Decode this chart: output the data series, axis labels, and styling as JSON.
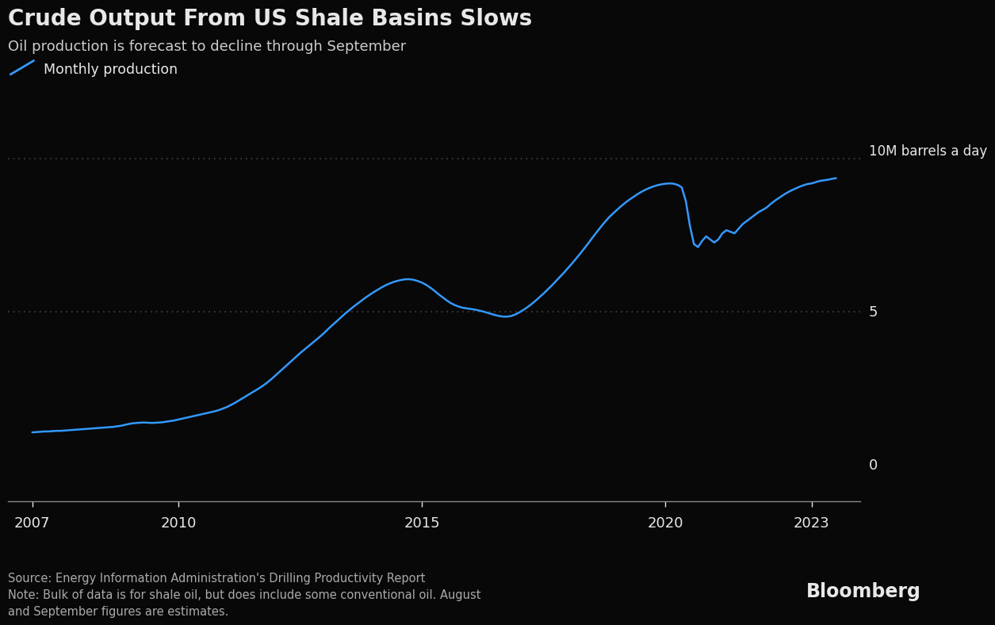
{
  "title": "Crude Output From US Shale Basins Slows",
  "subtitle": "Oil production is forecast to decline through September",
  "legend_label": "Monthly production",
  "ytick_right_label": "10M barrels a day",
  "x_ticks": [
    2007,
    2010,
    2015,
    2020,
    2023
  ],
  "ylim": [
    -1.2,
    12.0
  ],
  "xlim": [
    2006.5,
    2024.0
  ],
  "background_color": "#080808",
  "line_color": "#3399ff",
  "text_color": "#e8e8e8",
  "subtitle_color": "#cccccc",
  "source_color": "#aaaaaa",
  "source_text": "Source: Energy Information Administration's Drilling Productivity Report\nNote: Bulk of data is for shale oil, but does include some conventional oil. August\nand September figures are estimates.",
  "bloomberg_text": "Bloomberg",
  "dotted_line_color": "#444444",
  "years": [
    2007.0,
    2007.083,
    2007.167,
    2007.25,
    2007.333,
    2007.417,
    2007.5,
    2007.583,
    2007.667,
    2007.75,
    2007.833,
    2007.917,
    2008.0,
    2008.083,
    2008.167,
    2008.25,
    2008.333,
    2008.417,
    2008.5,
    2008.583,
    2008.667,
    2008.75,
    2008.833,
    2008.917,
    2009.0,
    2009.083,
    2009.167,
    2009.25,
    2009.333,
    2009.417,
    2009.5,
    2009.583,
    2009.667,
    2009.75,
    2009.833,
    2009.917,
    2010.0,
    2010.083,
    2010.167,
    2010.25,
    2010.333,
    2010.417,
    2010.5,
    2010.583,
    2010.667,
    2010.75,
    2010.833,
    2010.917,
    2011.0,
    2011.083,
    2011.167,
    2011.25,
    2011.333,
    2011.417,
    2011.5,
    2011.583,
    2011.667,
    2011.75,
    2011.833,
    2011.917,
    2012.0,
    2012.083,
    2012.167,
    2012.25,
    2012.333,
    2012.417,
    2012.5,
    2012.583,
    2012.667,
    2012.75,
    2012.833,
    2012.917,
    2013.0,
    2013.083,
    2013.167,
    2013.25,
    2013.333,
    2013.417,
    2013.5,
    2013.583,
    2013.667,
    2013.75,
    2013.833,
    2013.917,
    2014.0,
    2014.083,
    2014.167,
    2014.25,
    2014.333,
    2014.417,
    2014.5,
    2014.583,
    2014.667,
    2014.75,
    2014.833,
    2014.917,
    2015.0,
    2015.083,
    2015.167,
    2015.25,
    2015.333,
    2015.417,
    2015.5,
    2015.583,
    2015.667,
    2015.75,
    2015.833,
    2015.917,
    2016.0,
    2016.083,
    2016.167,
    2016.25,
    2016.333,
    2016.417,
    2016.5,
    2016.583,
    2016.667,
    2016.75,
    2016.833,
    2016.917,
    2017.0,
    2017.083,
    2017.167,
    2017.25,
    2017.333,
    2017.417,
    2017.5,
    2017.583,
    2017.667,
    2017.75,
    2017.833,
    2017.917,
    2018.0,
    2018.083,
    2018.167,
    2018.25,
    2018.333,
    2018.417,
    2018.5,
    2018.583,
    2018.667,
    2018.75,
    2018.833,
    2018.917,
    2019.0,
    2019.083,
    2019.167,
    2019.25,
    2019.333,
    2019.417,
    2019.5,
    2019.583,
    2019.667,
    2019.75,
    2019.833,
    2019.917,
    2020.0,
    2020.083,
    2020.167,
    2020.25,
    2020.333,
    2020.417,
    2020.5,
    2020.583,
    2020.667,
    2020.75,
    2020.833,
    2020.917,
    2021.0,
    2021.083,
    2021.167,
    2021.25,
    2021.333,
    2021.417,
    2021.5,
    2021.583,
    2021.667,
    2021.75,
    2021.833,
    2021.917,
    2022.0,
    2022.083,
    2022.167,
    2022.25,
    2022.333,
    2022.417,
    2022.5,
    2022.583,
    2022.667,
    2022.75,
    2022.833,
    2022.917,
    2023.0,
    2023.083,
    2023.167,
    2023.25,
    2023.333,
    2023.417,
    2023.5
  ],
  "values": [
    1.05,
    1.06,
    1.07,
    1.08,
    1.08,
    1.09,
    1.1,
    1.1,
    1.11,
    1.12,
    1.13,
    1.14,
    1.15,
    1.16,
    1.17,
    1.18,
    1.19,
    1.2,
    1.21,
    1.22,
    1.23,
    1.25,
    1.27,
    1.3,
    1.33,
    1.35,
    1.36,
    1.37,
    1.37,
    1.36,
    1.36,
    1.37,
    1.38,
    1.4,
    1.42,
    1.44,
    1.47,
    1.5,
    1.53,
    1.56,
    1.59,
    1.62,
    1.65,
    1.68,
    1.71,
    1.74,
    1.78,
    1.83,
    1.88,
    1.95,
    2.02,
    2.1,
    2.18,
    2.26,
    2.34,
    2.42,
    2.5,
    2.59,
    2.69,
    2.8,
    2.92,
    3.04,
    3.16,
    3.28,
    3.4,
    3.52,
    3.64,
    3.75,
    3.86,
    3.97,
    4.08,
    4.19,
    4.31,
    4.44,
    4.56,
    4.68,
    4.8,
    4.92,
    5.03,
    5.14,
    5.24,
    5.34,
    5.44,
    5.53,
    5.62,
    5.7,
    5.78,
    5.85,
    5.91,
    5.96,
    6.0,
    6.03,
    6.05,
    6.05,
    6.03,
    5.99,
    5.94,
    5.87,
    5.78,
    5.68,
    5.57,
    5.47,
    5.37,
    5.28,
    5.21,
    5.16,
    5.12,
    5.1,
    5.08,
    5.06,
    5.03,
    5.0,
    4.96,
    4.92,
    4.88,
    4.85,
    4.83,
    4.83,
    4.85,
    4.9,
    4.97,
    5.05,
    5.14,
    5.24,
    5.35,
    5.47,
    5.59,
    5.72,
    5.85,
    5.99,
    6.13,
    6.27,
    6.42,
    6.57,
    6.73,
    6.89,
    7.06,
    7.23,
    7.41,
    7.58,
    7.75,
    7.91,
    8.06,
    8.19,
    8.31,
    8.43,
    8.54,
    8.64,
    8.73,
    8.82,
    8.9,
    8.97,
    9.03,
    9.08,
    9.12,
    9.15,
    9.17,
    9.18,
    9.17,
    9.13,
    9.05,
    8.6,
    7.8,
    7.2,
    7.1,
    7.3,
    7.45,
    7.35,
    7.25,
    7.35,
    7.55,
    7.65,
    7.6,
    7.55,
    7.7,
    7.85,
    7.95,
    8.05,
    8.15,
    8.25,
    8.32,
    8.4,
    8.52,
    8.62,
    8.71,
    8.8,
    8.88,
    8.95,
    9.01,
    9.07,
    9.12,
    9.16,
    9.18,
    9.22,
    9.26,
    9.28,
    9.3,
    9.33,
    9.35
  ]
}
